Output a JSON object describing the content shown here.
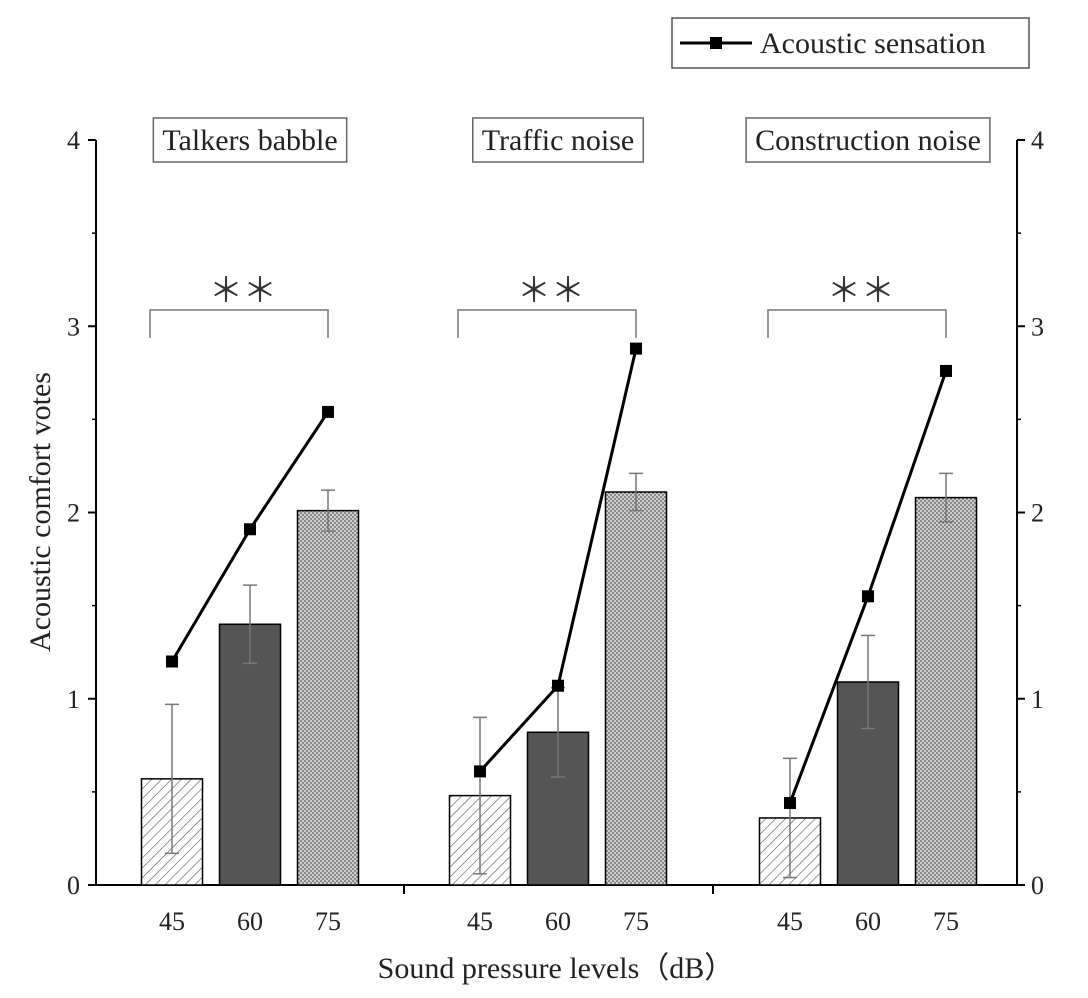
{
  "chart_data": {
    "type": "bar",
    "subtype": "grouped bar with overlaid line",
    "xlabel": "Sound pressure levels（dB）",
    "ylabel": "Acoustic comfort votes",
    "ylim": [
      0,
      4
    ],
    "yticks": [
      "0",
      "1",
      "2",
      "3",
      "4"
    ],
    "legend": {
      "label": "Acoustic sensation",
      "placement": "top-right"
    },
    "groups": [
      {
        "name": "Talkers babble",
        "levels": [
          "45",
          "60",
          "75"
        ],
        "comfort": [
          0.57,
          1.4,
          2.01
        ],
        "error": [
          0.4,
          0.21,
          0.11
        ],
        "sensation": [
          1.2,
          1.91,
          2.54
        ],
        "significance": "＊＊"
      },
      {
        "name": "Traffic noise",
        "levels": [
          "45",
          "60",
          "75"
        ],
        "comfort": [
          0.48,
          0.82,
          2.11
        ],
        "error": [
          0.42,
          0.24,
          0.1
        ],
        "sensation": [
          0.61,
          1.07,
          2.88
        ],
        "significance": "＊＊"
      },
      {
        "name": "Construction noise",
        "levels": [
          "45",
          "60",
          "75"
        ],
        "comfort": [
          0.36,
          1.09,
          2.08
        ],
        "error": [
          0.32,
          0.25,
          0.13
        ],
        "sensation": [
          0.44,
          1.55,
          2.76
        ],
        "significance": "＊＊"
      }
    ],
    "bar_fills": [
      "hatched",
      "dark-gray",
      "dotted"
    ],
    "colors": {
      "dark_bar": "#555555",
      "line": "#000000",
      "axis": "#000000"
    }
  }
}
